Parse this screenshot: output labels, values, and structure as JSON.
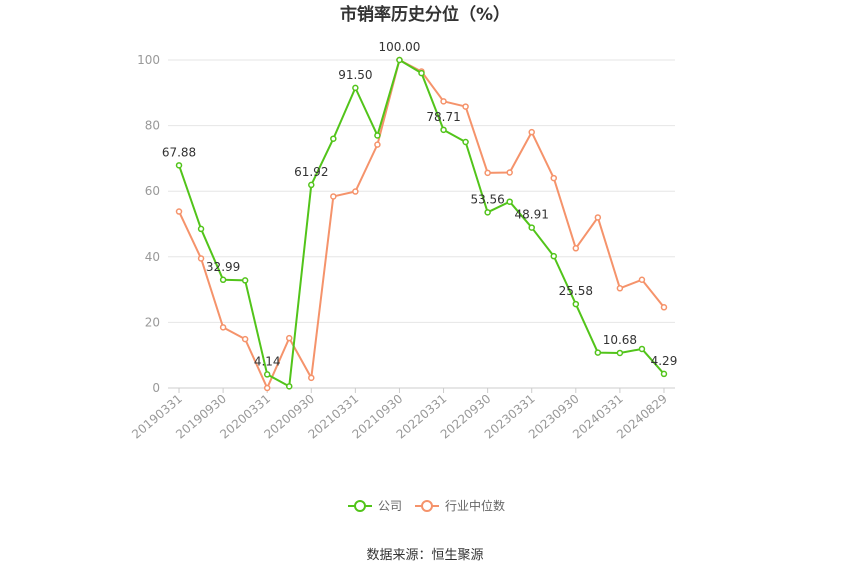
{
  "chart_data": {
    "type": "line",
    "title": "市销率历史分位（%）",
    "source": "数据来源：恒生聚源",
    "ylim": [
      0,
      100
    ],
    "yticks": [
      0,
      20,
      40,
      60,
      80,
      100
    ],
    "grid": true,
    "legend_position": "bottom",
    "x": [
      "20190331",
      "20190630",
      "20190930",
      "20191231",
      "20200331",
      "20200630",
      "20200930",
      "20201231",
      "20210331",
      "20210630",
      "20210930",
      "20211231",
      "20220331",
      "20220630",
      "20220930",
      "20221231",
      "20230331",
      "20230630",
      "20230930",
      "20231231",
      "20240331",
      "20240630",
      "20240829"
    ],
    "xtick_labels": [
      "20190331",
      "20190930",
      "20200331",
      "20200930",
      "20210331",
      "20210930",
      "20220331",
      "20220930",
      "20230331",
      "20230930",
      "20240331",
      "20240829"
    ],
    "series": [
      {
        "name": "公司",
        "color": "#52c41a",
        "values": [
          67.88,
          48.5,
          32.99,
          32.8,
          4.14,
          0.5,
          61.92,
          76.0,
          91.5,
          77.0,
          100.0,
          96.0,
          78.71,
          75.0,
          53.56,
          56.8,
          48.91,
          40.2,
          25.58,
          10.8,
          10.68,
          11.9,
          4.29
        ],
        "labels": {
          "0": "67.88",
          "2": "32.99",
          "4": "4.14",
          "6": "61.92",
          "8": "91.50",
          "10": "100.00",
          "12": "78.71",
          "14": "53.56",
          "16": "48.91",
          "18": "25.58",
          "20": "10.68",
          "22": "4.29"
        }
      },
      {
        "name": "行业中位数",
        "color": "#f5936b",
        "values": [
          53.8,
          39.5,
          18.5,
          14.9,
          0.0,
          15.2,
          3.1,
          58.4,
          59.9,
          74.2,
          100.0,
          96.5,
          87.4,
          85.8,
          65.6,
          65.7,
          78.0,
          64.0,
          42.6,
          52.0,
          30.4,
          33.0,
          24.6
        ],
        "labels": {}
      }
    ]
  }
}
